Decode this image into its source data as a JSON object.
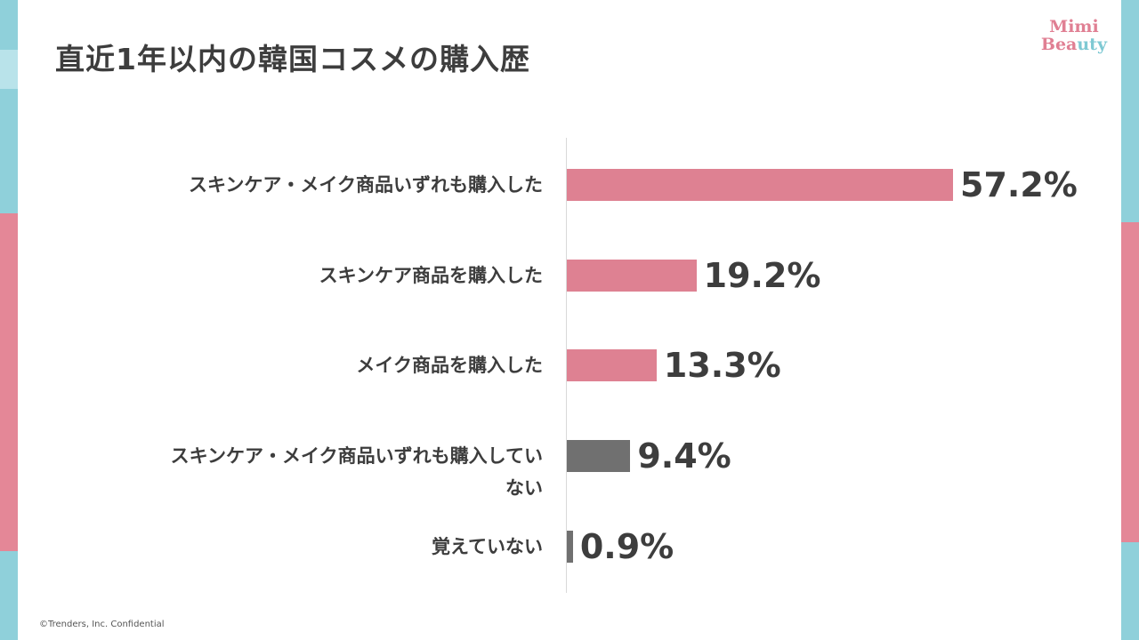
{
  "title": "直近1年以内の韓国コスメの購入歴",
  "logo": {
    "line1": "Mimi",
    "line2a": "Bea",
    "line2b": "uty"
  },
  "footer": "©Trenders, Inc.  Confidential",
  "colors": {
    "pink": "#de8192",
    "gray": "#707070"
  },
  "chart_data": {
    "type": "bar",
    "orientation": "horizontal",
    "categories": [
      "スキンケア・メイク商品いずれも購入した",
      "スキンケア商品を購入した",
      "メイク商品を購入した",
      "スキンケア・メイク商品いずれも購入していない",
      "覚えていない"
    ],
    "category_lines": [
      [
        "スキンケア・メイク商品いずれも購入した"
      ],
      [
        "スキンケア商品を購入した"
      ],
      [
        "メイク商品を購入した"
      ],
      [
        "スキンケア・メイク商品いずれも購入してい",
        "ない"
      ],
      [
        "覚えていない"
      ]
    ],
    "values": [
      57.2,
      19.2,
      13.3,
      9.4,
      0.9
    ],
    "value_labels": [
      "57.2%",
      "19.2%",
      "13.3%",
      "9.4%",
      "0.9%"
    ],
    "bar_colors": [
      "#de8192",
      "#de8192",
      "#de8192",
      "#707070",
      "#707070"
    ],
    "xlim": [
      0,
      57.2
    ],
    "grid": false,
    "legend": "none"
  }
}
